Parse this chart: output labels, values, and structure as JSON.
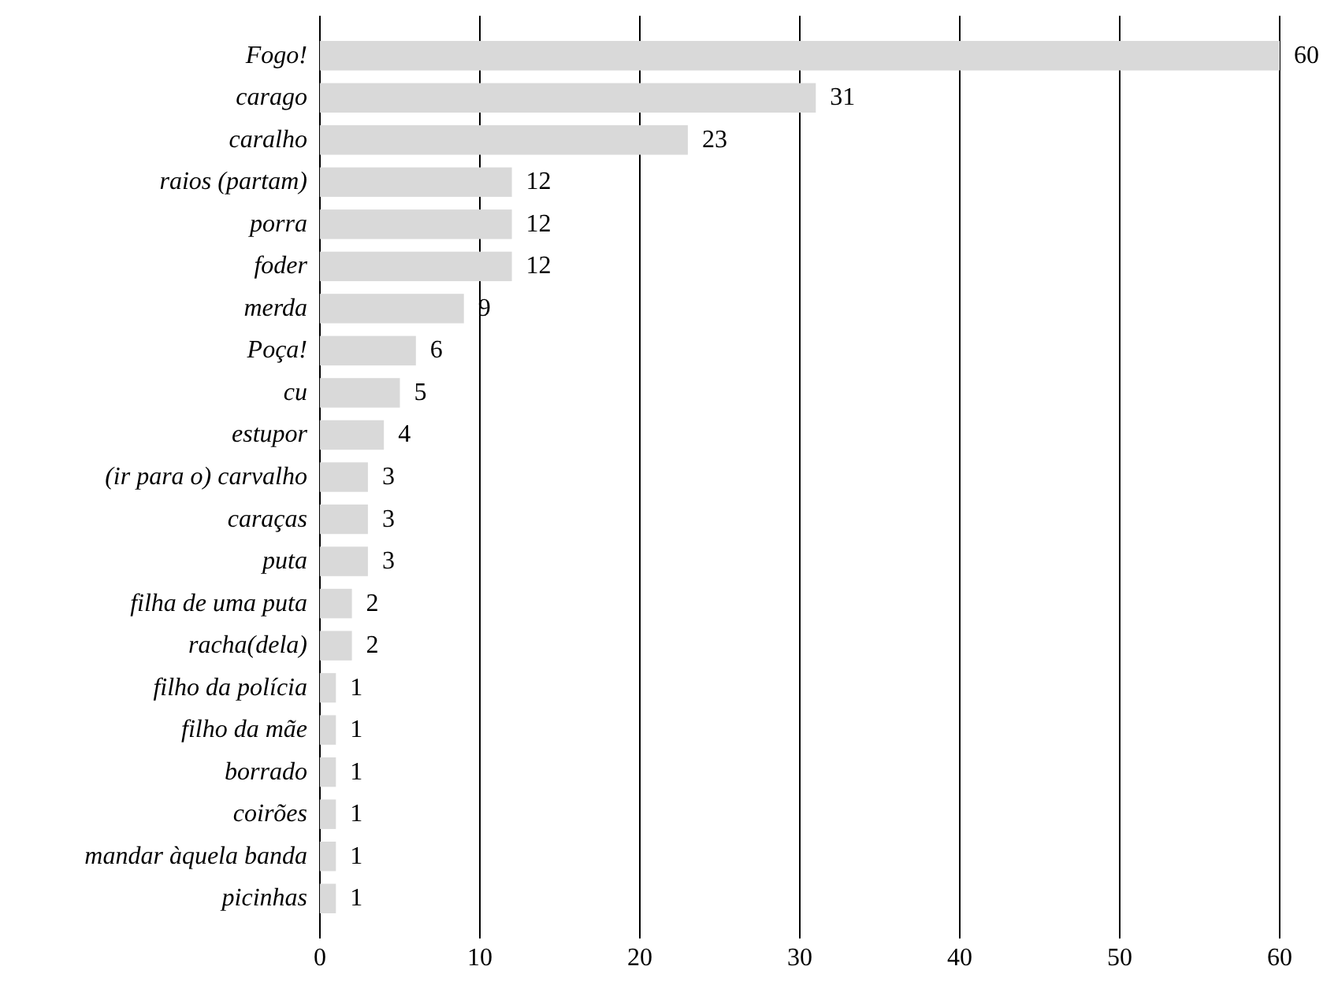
{
  "chart_data": {
    "type": "bar",
    "orientation": "horizontal",
    "categories": [
      "Fogo!",
      "carago",
      "caralho",
      "raios (partam)",
      "porra",
      "foder",
      "merda",
      "Poça!",
      "cu",
      "estupor",
      "(ir para o) carvalho",
      "caraças",
      "puta",
      "filha de uma puta",
      "racha(dela)",
      "filho da polícia",
      "filho da mãe",
      "borrado",
      "coirões",
      "mandar àquela banda",
      "picinhas"
    ],
    "values": [
      60,
      31,
      23,
      12,
      12,
      12,
      9,
      6,
      5,
      4,
      3,
      3,
      3,
      2,
      2,
      1,
      1,
      1,
      1,
      1,
      1
    ],
    "color": "#d9d9d9",
    "xlim": [
      0,
      60
    ],
    "xticks": [
      0,
      10,
      20,
      30,
      40,
      50,
      60
    ],
    "grid": "x",
    "data_labels": true
  }
}
